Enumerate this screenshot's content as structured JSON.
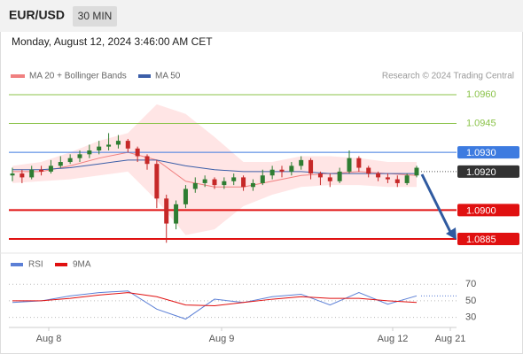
{
  "header": {
    "symbol": "EUR/USD",
    "timeframe": "30 MIN",
    "datetime": "Monday, August 12, 2024 3:46:00 AM CET"
  },
  "legend": {
    "ma20_bb": "MA 20 + Bollinger Bands",
    "ma50": "MA 50",
    "credit": "Research © 2024 Trading Central"
  },
  "chart_data": [
    {
      "type": "candlestick",
      "open": [
        1.0918,
        1.0919,
        1.0917,
        1.0921,
        1.092,
        1.0923,
        1.0925,
        1.0927,
        1.0929,
        1.0931,
        1.0933,
        1.0934,
        1.0936,
        1.0932,
        1.0928,
        1.0924,
        1.0906,
        1.0893,
        1.0903,
        1.0911,
        1.0914,
        1.0916,
        1.0913,
        1.0915,
        1.0917,
        1.0912,
        1.0914,
        1.0918,
        1.0921,
        1.092,
        1.0923,
        1.0926,
        1.0919,
        1.0917,
        1.0915,
        1.092,
        1.0927,
        1.0922,
        1.0919,
        1.0917,
        1.0916,
        1.0914,
        1.0918
      ],
      "high": [
        1.0922,
        1.0921,
        1.0923,
        1.0923,
        1.0926,
        1.0928,
        1.0929,
        1.0931,
        1.0934,
        1.0936,
        1.094,
        1.0939,
        1.0937,
        1.0933,
        1.0929,
        1.0926,
        1.0908,
        1.0905,
        1.0913,
        1.0917,
        1.0918,
        1.0917,
        1.0917,
        1.0919,
        1.0918,
        1.0916,
        1.0921,
        1.0923,
        1.0923,
        1.0925,
        1.0928,
        1.0927,
        1.092,
        1.0919,
        1.0922,
        1.0931,
        1.0928,
        1.0923,
        1.092,
        1.0919,
        1.0918,
        1.0919,
        1.0923
      ],
      "low": [
        1.0915,
        1.0914,
        1.0916,
        1.0918,
        1.0919,
        1.0922,
        1.0924,
        1.0925,
        1.0927,
        1.0929,
        1.0931,
        1.0932,
        1.093,
        1.0925,
        1.0921,
        1.0901,
        1.0883,
        1.089,
        1.0901,
        1.0909,
        1.0912,
        1.0911,
        1.0911,
        1.0913,
        1.091,
        1.091,
        1.0913,
        1.0916,
        1.0917,
        1.0918,
        1.0921,
        1.0916,
        1.0913,
        1.0912,
        1.0914,
        1.0919,
        1.092,
        1.0917,
        1.0915,
        1.0914,
        1.0912,
        1.0913,
        1.0917
      ],
      "close": [
        1.0919,
        1.0917,
        1.0921,
        1.092,
        1.0923,
        1.0925,
        1.0927,
        1.0929,
        1.0931,
        1.0933,
        1.0934,
        1.0936,
        1.0932,
        1.0928,
        1.0924,
        1.0906,
        1.0893,
        1.0903,
        1.0911,
        1.0914,
        1.0916,
        1.0913,
        1.0915,
        1.0917,
        1.0912,
        1.0914,
        1.0918,
        1.0921,
        1.092,
        1.0923,
        1.0926,
        1.0919,
        1.0917,
        1.0915,
        1.092,
        1.0927,
        1.0922,
        1.0919,
        1.0917,
        1.0916,
        1.0914,
        1.0918,
        1.0922
      ],
      "up_color": "#2e7d32",
      "down_color": "#c62828",
      "overlays_x": [
        0,
        3,
        6,
        9,
        12,
        15,
        18,
        21,
        24,
        27,
        30,
        33,
        36,
        39,
        42
      ],
      "series": [
        {
          "name": "MA 20 + Bollinger Bands",
          "color": "#f08080",
          "values": [
            1.092,
            1.092,
            1.0923,
            1.0927,
            1.093,
            1.0926,
            1.0915,
            1.0912,
            1.0912,
            1.0915,
            1.0918,
            1.0919,
            1.092,
            1.0919,
            1.0918
          ],
          "upper": [
            1.0923,
            1.0925,
            1.093,
            1.0936,
            1.094,
            1.0955,
            1.095,
            1.0938,
            1.0925,
            1.0925,
            1.0928,
            1.0928,
            1.0927,
            1.0925,
            1.0925
          ],
          "lower": [
            1.0914,
            1.0915,
            1.0916,
            1.0918,
            1.092,
            1.0905,
            1.0887,
            1.089,
            1.0902,
            1.0908,
            1.0912,
            1.0913,
            1.0913,
            1.0912,
            1.0912
          ]
        },
        {
          "name": "MA 50",
          "color": "#3b5ea8",
          "values": [
            1.0921,
            1.0921,
            1.0922,
            1.0924,
            1.0926,
            1.0926,
            1.0923,
            1.0921,
            1.092,
            1.092,
            1.092,
            1.0919,
            1.0919,
            1.0919,
            1.0919
          ]
        }
      ],
      "levels": [
        {
          "value": 1.096,
          "label": "1.0960",
          "color": "#8bc34a",
          "style": "text"
        },
        {
          "value": 1.0945,
          "label": "1.0945",
          "color": "#8bc34a",
          "style": "text"
        },
        {
          "value": 1.093,
          "label": "1.0930",
          "color": "#3d7be0",
          "style": "box"
        },
        {
          "value": 1.092,
          "label": "1.0920",
          "color": "#333333",
          "style": "current"
        },
        {
          "value": 1.09,
          "label": "1.0900",
          "color": "#e01010",
          "style": "box"
        },
        {
          "value": 1.0885,
          "label": "1.0885",
          "color": "#e01010",
          "style": "box"
        }
      ],
      "ylim": [
        1.0879,
        1.09655
      ]
    },
    {
      "type": "line",
      "x": [
        0,
        3,
        6,
        9,
        12,
        15,
        18,
        21,
        24,
        27,
        30,
        33,
        36,
        39,
        42
      ],
      "series": [
        {
          "name": "RSI",
          "color": "#5b7fd6",
          "values": [
            48,
            50,
            56,
            60,
            62,
            40,
            28,
            52,
            48,
            55,
            58,
            45,
            60,
            46,
            56
          ]
        },
        {
          "name": "9MA",
          "color": "#e01010",
          "values": [
            50,
            50,
            53,
            57,
            60,
            55,
            45,
            44,
            48,
            52,
            55,
            53,
            53,
            50,
            48
          ]
        }
      ],
      "ylim": [
        20,
        82
      ],
      "yticks": [
        70,
        50,
        30
      ],
      "x_labels": [
        "Aug 8",
        "Aug 9",
        "Aug 12",
        "Aug 21"
      ]
    }
  ]
}
